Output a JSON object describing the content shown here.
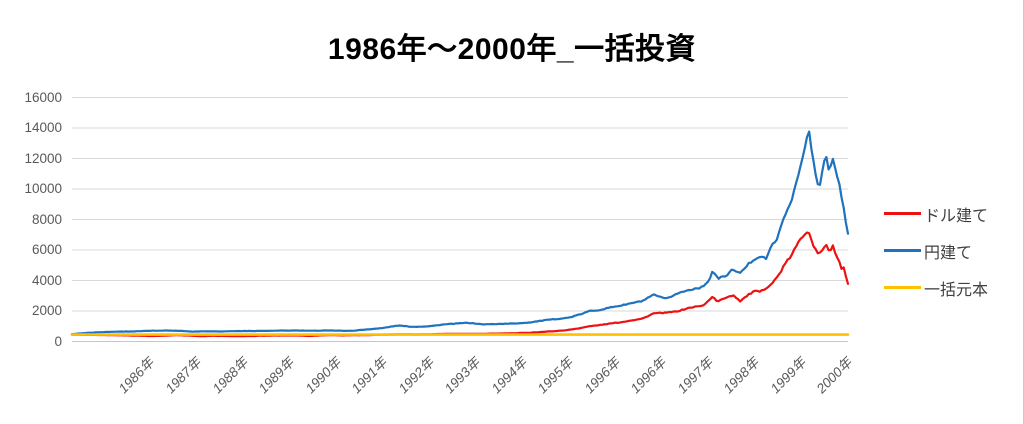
{
  "chart_data": {
    "type": "line",
    "title": "1986年〜2000年_一括投資",
    "xlabel": "",
    "ylabel": "",
    "grid": true,
    "legend_position": "right",
    "y_axis": {
      "min": 0,
      "max": 16000,
      "tick_step": 2000,
      "ticks": [
        0,
        2000,
        4000,
        6000,
        8000,
        10000,
        12000,
        14000,
        16000
      ]
    },
    "x_axis": {
      "labels": [
        "1986年",
        "1987年",
        "1988年",
        "1989年",
        "1990年",
        "1991年",
        "1992年",
        "1993年",
        "1994年",
        "1995年",
        "1996年",
        "1996年",
        "1997年",
        "1998年",
        "1999年",
        "2000年"
      ]
    },
    "series": [
      {
        "name": "ドル建て",
        "color": "#ee1111",
        "points": [
          [
            0,
            450
          ],
          [
            0.02,
            430
          ],
          [
            0.04,
            430
          ],
          [
            0.06,
            410
          ],
          [
            0.08,
            390
          ],
          [
            0.1,
            360
          ],
          [
            0.12,
            380
          ],
          [
            0.135,
            420
          ],
          [
            0.15,
            390
          ],
          [
            0.165,
            350
          ],
          [
            0.18,
            370
          ],
          [
            0.2,
            360
          ],
          [
            0.215,
            345
          ],
          [
            0.23,
            360
          ],
          [
            0.25,
            385
          ],
          [
            0.27,
            395
          ],
          [
            0.29,
            400
          ],
          [
            0.305,
            360
          ],
          [
            0.32,
            400
          ],
          [
            0.335,
            420
          ],
          [
            0.35,
            400
          ],
          [
            0.365,
            410
          ],
          [
            0.38,
            420
          ],
          [
            0.4,
            450
          ],
          [
            0.42,
            470
          ],
          [
            0.44,
            465
          ],
          [
            0.46,
            470
          ],
          [
            0.48,
            500
          ],
          [
            0.51,
            505
          ],
          [
            0.53,
            500
          ],
          [
            0.55,
            520
          ],
          [
            0.57,
            540
          ],
          [
            0.59,
            580
          ],
          [
            0.61,
            640
          ],
          [
            0.625,
            690
          ],
          [
            0.64,
            760
          ],
          [
            0.655,
            880
          ],
          [
            0.667,
            1000
          ],
          [
            0.68,
            1080
          ],
          [
            0.7,
            1220
          ],
          [
            0.71,
            1280
          ],
          [
            0.72,
            1380
          ],
          [
            0.735,
            1500
          ],
          [
            0.75,
            1850
          ],
          [
            0.765,
            1880
          ],
          [
            0.78,
            1980
          ],
          [
            0.795,
            2200
          ],
          [
            0.805,
            2300
          ],
          [
            0.812,
            2320
          ],
          [
            0.822,
            2750
          ],
          [
            0.825,
            2950
          ],
          [
            0.832,
            2600
          ],
          [
            0.843,
            2900
          ],
          [
            0.852,
            3050
          ],
          [
            0.861,
            2650
          ],
          [
            0.87,
            3000
          ],
          [
            0.879,
            3300
          ],
          [
            0.887,
            3250
          ],
          [
            0.894,
            3500
          ],
          [
            0.902,
            3800
          ],
          [
            0.91,
            4300
          ],
          [
            0.918,
            5000
          ],
          [
            0.925,
            5500
          ],
          [
            0.933,
            6200
          ],
          [
            0.94,
            6800
          ],
          [
            0.945,
            7100
          ],
          [
            0.949,
            7350
          ],
          [
            0.954,
            6500
          ],
          [
            0.959,
            5900
          ],
          [
            0.963,
            5700
          ],
          [
            0.968,
            6100
          ],
          [
            0.972,
            6400
          ],
          [
            0.976,
            5900
          ],
          [
            0.981,
            6250
          ],
          [
            0.985,
            5600
          ],
          [
            0.989,
            5200
          ],
          [
            0.992,
            4700
          ],
          [
            0.995,
            4900
          ],
          [
            0.997,
            4300
          ],
          [
            1,
            3750
          ]
        ]
      },
      {
        "name": "円建て",
        "color": "#1f72be",
        "points": [
          [
            0,
            480
          ],
          [
            0.02,
            570
          ],
          [
            0.04,
            620
          ],
          [
            0.06,
            650
          ],
          [
            0.08,
            660
          ],
          [
            0.1,
            700
          ],
          [
            0.12,
            720
          ],
          [
            0.14,
            700
          ],
          [
            0.155,
            650
          ],
          [
            0.17,
            670
          ],
          [
            0.19,
            660
          ],
          [
            0.21,
            680
          ],
          [
            0.23,
            690
          ],
          [
            0.25,
            700
          ],
          [
            0.27,
            710
          ],
          [
            0.29,
            720
          ],
          [
            0.31,
            700
          ],
          [
            0.33,
            730
          ],
          [
            0.345,
            705
          ],
          [
            0.36,
            700
          ],
          [
            0.38,
            790
          ],
          [
            0.4,
            880
          ],
          [
            0.42,
            1050
          ],
          [
            0.44,
            960
          ],
          [
            0.46,
            1000
          ],
          [
            0.48,
            1120
          ],
          [
            0.51,
            1230
          ],
          [
            0.53,
            1120
          ],
          [
            0.55,
            1150
          ],
          [
            0.57,
            1180
          ],
          [
            0.59,
            1250
          ],
          [
            0.61,
            1400
          ],
          [
            0.625,
            1480
          ],
          [
            0.64,
            1560
          ],
          [
            0.655,
            1780
          ],
          [
            0.667,
            2000
          ],
          [
            0.68,
            2070
          ],
          [
            0.7,
            2300
          ],
          [
            0.71,
            2380
          ],
          [
            0.72,
            2500
          ],
          [
            0.735,
            2650
          ],
          [
            0.75,
            3060
          ],
          [
            0.765,
            2780
          ],
          [
            0.78,
            3150
          ],
          [
            0.795,
            3380
          ],
          [
            0.805,
            3500
          ],
          [
            0.812,
            3550
          ],
          [
            0.822,
            4100
          ],
          [
            0.825,
            4600
          ],
          [
            0.832,
            4150
          ],
          [
            0.843,
            4300
          ],
          [
            0.852,
            4750
          ],
          [
            0.861,
            4450
          ],
          [
            0.87,
            5000
          ],
          [
            0.879,
            5400
          ],
          [
            0.887,
            5600
          ],
          [
            0.894,
            5400
          ],
          [
            0.902,
            6300
          ],
          [
            0.91,
            6900
          ],
          [
            0.918,
            8200
          ],
          [
            0.925,
            9000
          ],
          [
            0.933,
            10300
          ],
          [
            0.94,
            11700
          ],
          [
            0.945,
            12800
          ],
          [
            0.949,
            14000
          ],
          [
            0.954,
            12200
          ],
          [
            0.959,
            10700
          ],
          [
            0.963,
            10000
          ],
          [
            0.968,
            11500
          ],
          [
            0.972,
            12100
          ],
          [
            0.976,
            11200
          ],
          [
            0.981,
            12000
          ],
          [
            0.985,
            11200
          ],
          [
            0.989,
            10300
          ],
          [
            0.992,
            9300
          ],
          [
            0.995,
            8600
          ],
          [
            0.997,
            7800
          ],
          [
            1,
            7000
          ]
        ]
      },
      {
        "name": "一括元本",
        "color": "#ffc000",
        "points": [
          [
            0,
            450
          ],
          [
            1,
            450
          ]
        ]
      }
    ]
  },
  "legend": {
    "items": [
      {
        "label": "ドル建て",
        "color": "#ee1111"
      },
      {
        "label": "円建て",
        "color": "#1f72be"
      },
      {
        "label": "一括元本",
        "color": "#ffc000"
      }
    ]
  }
}
